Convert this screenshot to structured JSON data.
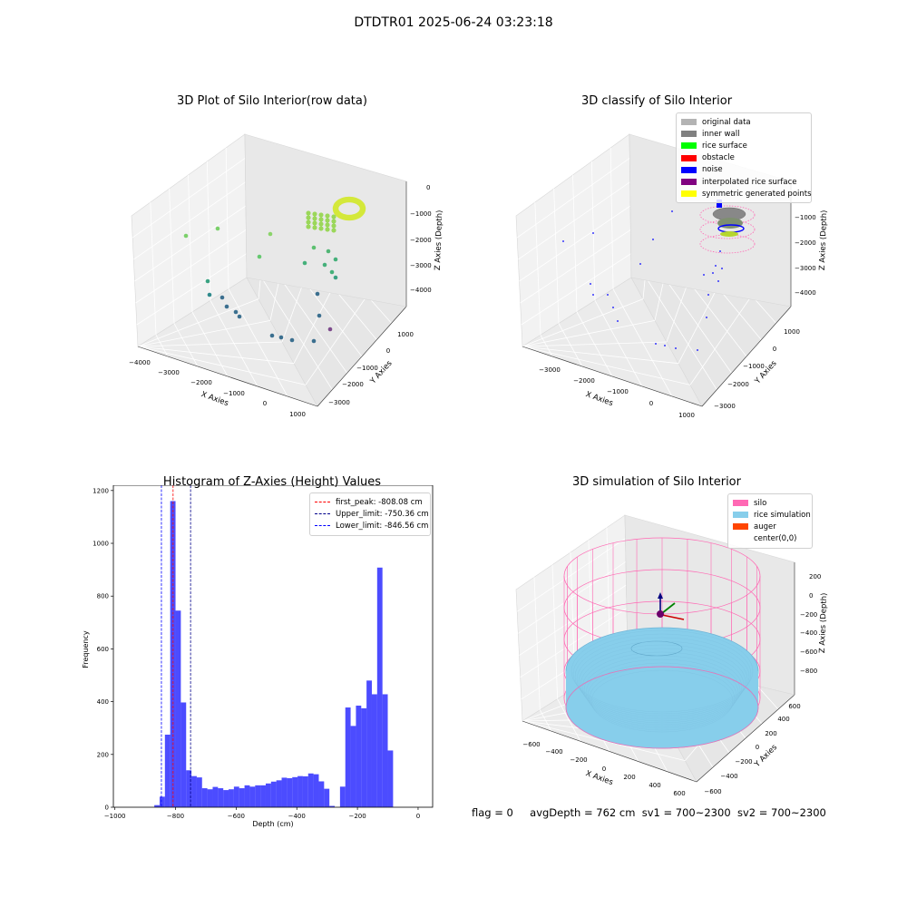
{
  "suptitle": "DTDTR01 2025-06-24 03:23:18",
  "panels": {
    "raw": {
      "title": "3D Plot of Silo Interior(row data)",
      "x_ticks": [
        "−4000",
        "−3000",
        "−2000",
        "−1000",
        "0",
        "1000"
      ],
      "y_ticks": [
        "1000",
        "0",
        "−1000",
        "−2000",
        "−3000"
      ],
      "z_ticks": [
        "0",
        "−1000",
        "−2000",
        "−3000",
        "−4000"
      ],
      "xlabel": "X Axies",
      "ylabel": "Y Axies",
      "zlabel": "Z Axies (Depth)"
    },
    "classify": {
      "title": "3D classify of Silo Interior",
      "x_ticks": [
        "−3000",
        "−2000",
        "−1000",
        "0",
        "1000"
      ],
      "y_ticks": [
        "1000",
        "0",
        "−1000",
        "−2000",
        "−3000"
      ],
      "z_ticks": [
        "−1000",
        "−2000",
        "−3000",
        "−4000"
      ],
      "xlabel": "X Axies",
      "ylabel": "Y Axies",
      "zlabel": "Z Axies (Depth)",
      "legend": [
        {
          "label": "original data",
          "color": "#b3b3b3"
        },
        {
          "label": "inner wall",
          "color": "#808080"
        },
        {
          "label": "rice surface",
          "color": "#00ff00"
        },
        {
          "label": "obstacle",
          "color": "#ff0000"
        },
        {
          "label": "noise",
          "color": "#0000ff"
        },
        {
          "label": "interpolated rice surface",
          "color": "#800080"
        },
        {
          "label": "symmetric generated points",
          "color": "#ffff00"
        }
      ]
    },
    "simulation": {
      "title": "3D simulation of Silo Interior",
      "x_ticks": [
        "−600",
        "−400",
        "−200",
        "0",
        "200",
        "400",
        "600"
      ],
      "y_ticks": [
        "600",
        "400",
        "200",
        "0",
        "−200",
        "−400",
        "−600"
      ],
      "z_ticks": [
        "200",
        "0",
        "−200",
        "−400",
        "−600",
        "−800"
      ],
      "xlabel": "X Axies",
      "ylabel": "Y Axies",
      "zlabel": "Z Axies (Depth)",
      "legend": [
        {
          "label": "silo",
          "color": "#ff69b4"
        },
        {
          "label": "rice simulation",
          "color": "#87ceeb"
        },
        {
          "label": "auger",
          "color": "#ff4500"
        },
        {
          "label": "center(0,0)",
          "color": ""
        }
      ]
    }
  },
  "footer": {
    "flag": "flag = 0",
    "avg_depth": "avgDepth = 762 cm",
    "sv1": "sv1 = 700~2300",
    "sv2": "sv2 = 700~2300"
  },
  "chart_data": {
    "type": "bar",
    "title": "Histogram of Z-Axies (Height) Values",
    "xlabel": "Depth (cm)",
    "ylabel": "Frequency",
    "xlim": [
      -1005,
      48
    ],
    "ylim": [
      0,
      1220
    ],
    "x_ticks": [
      -1000,
      -800,
      -600,
      -400,
      -200,
      0
    ],
    "y_ticks": [
      0,
      200,
      400,
      600,
      800,
      1000,
      1200
    ],
    "bar_color": "#0000ff",
    "bin_width": 17.5,
    "bins": [
      {
        "x0": -870,
        "value": 8
      },
      {
        "x0": -852.5,
        "value": 40
      },
      {
        "x0": -835,
        "value": 275
      },
      {
        "x0": -817.5,
        "value": 1160
      },
      {
        "x0": -800,
        "value": 745
      },
      {
        "x0": -782.5,
        "value": 397
      },
      {
        "x0": -765,
        "value": 140
      },
      {
        "x0": -747.5,
        "value": 118
      },
      {
        "x0": -730,
        "value": 113
      },
      {
        "x0": -712.5,
        "value": 72
      },
      {
        "x0": -695,
        "value": 68
      },
      {
        "x0": -677.5,
        "value": 77
      },
      {
        "x0": -660,
        "value": 72
      },
      {
        "x0": -642.5,
        "value": 65
      },
      {
        "x0": -625,
        "value": 68
      },
      {
        "x0": -607.5,
        "value": 78
      },
      {
        "x0": -590,
        "value": 72
      },
      {
        "x0": -572.5,
        "value": 83
      },
      {
        "x0": -555,
        "value": 78
      },
      {
        "x0": -537.5,
        "value": 83
      },
      {
        "x0": -520,
        "value": 83
      },
      {
        "x0": -502.5,
        "value": 90
      },
      {
        "x0": -485,
        "value": 97
      },
      {
        "x0": -467.5,
        "value": 102
      },
      {
        "x0": -450,
        "value": 112
      },
      {
        "x0": -432.5,
        "value": 110
      },
      {
        "x0": -415,
        "value": 114
      },
      {
        "x0": -397.5,
        "value": 118
      },
      {
        "x0": -380,
        "value": 117
      },
      {
        "x0": -362.5,
        "value": 128
      },
      {
        "x0": -345,
        "value": 125
      },
      {
        "x0": -327.5,
        "value": 98
      },
      {
        "x0": -310,
        "value": 70
      },
      {
        "x0": -292.5,
        "value": 5
      },
      {
        "x0": -275,
        "value": 0
      },
      {
        "x0": -257.5,
        "value": 78
      },
      {
        "x0": -240,
        "value": 378
      },
      {
        "x0": -222.5,
        "value": 308
      },
      {
        "x0": -205,
        "value": 385
      },
      {
        "x0": -187.5,
        "value": 375
      },
      {
        "x0": -170,
        "value": 480
      },
      {
        "x0": -152.5,
        "value": 428
      },
      {
        "x0": -135,
        "value": 908
      },
      {
        "x0": -117.5,
        "value": 428
      },
      {
        "x0": -100,
        "value": 215
      }
    ],
    "vlines": [
      {
        "label": "first_peak: -808.08 cm",
        "x": -808.08,
        "color": "#ff0000"
      },
      {
        "label": "Upper_limit: -750.36 cm",
        "x": -750.36,
        "color": "#00008b"
      },
      {
        "label": "Lower_limit: -846.56 cm",
        "x": -846.56,
        "color": "#0000ff"
      }
    ],
    "legend_loc": "upper right",
    "grid": false
  }
}
